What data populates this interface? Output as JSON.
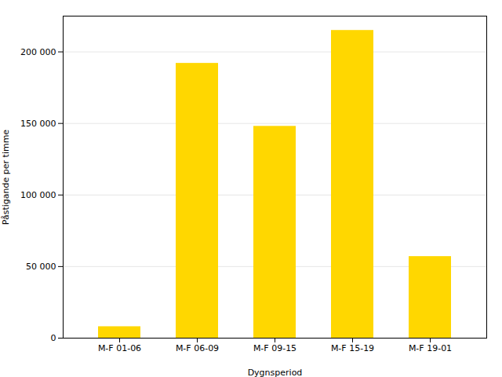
{
  "chart_data": {
    "type": "bar",
    "categories": [
      "M-F 01-06",
      "M-F 06-09",
      "M-F 09-15",
      "M-F 15-19",
      "M-F 19-01"
    ],
    "values": [
      8000,
      192000,
      148000,
      215000,
      57000
    ],
    "color": "#FFD700",
    "xlabel": "Dygnsperiod",
    "ylabel": "Påstigande per timme",
    "ylim": [
      0,
      225000
    ],
    "yticks": [
      0,
      {
        "value": 50000,
        "label": "50 000"
      },
      {
        "value": 100000,
        "label": "100 000"
      },
      {
        "value": 150000,
        "label": "150 000"
      },
      {
        "value": 200000,
        "label": "200 000"
      }
    ],
    "grid": true
  }
}
